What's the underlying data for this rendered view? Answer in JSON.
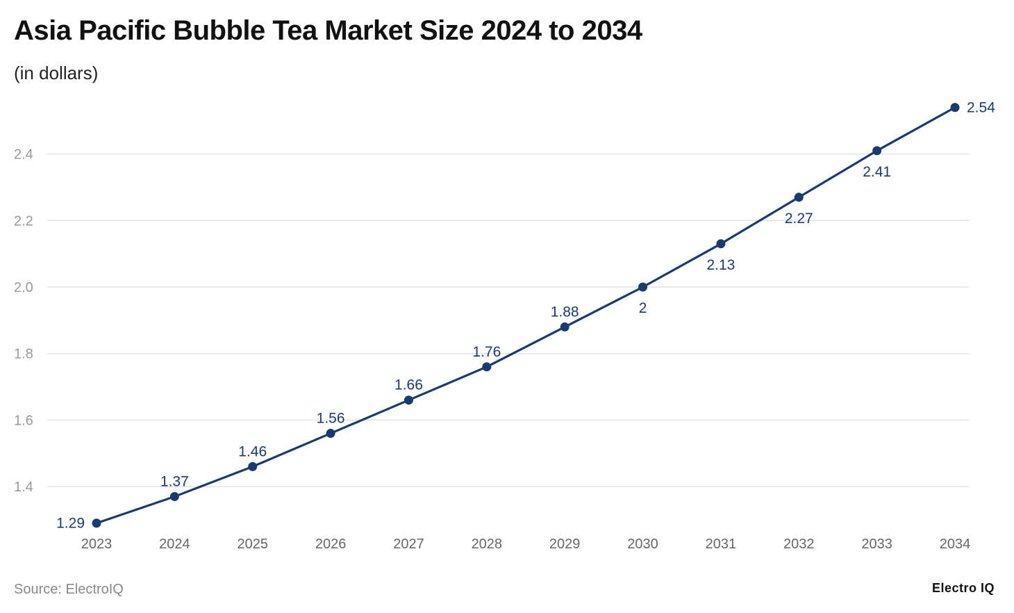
{
  "chart_data": {
    "type": "line",
    "title": "Asia Pacific Bubble Tea Market Size 2024 to 2034",
    "subtitle": "(in dollars)",
    "categories": [
      "2023",
      "2024",
      "2025",
      "2026",
      "2027",
      "2028",
      "2029",
      "2030",
      "2031",
      "2032",
      "2033",
      "2034"
    ],
    "values": [
      1.29,
      1.37,
      1.46,
      1.56,
      1.66,
      1.76,
      1.88,
      2,
      2.13,
      2.27,
      2.41,
      2.54
    ],
    "data_labels": [
      "1.29",
      "1.37",
      "1.46",
      "1.56",
      "1.66",
      "1.76",
      "1.88",
      "2",
      "2.13",
      "2.27",
      "2.41",
      "2.54"
    ],
    "yticks": [
      "1.4",
      "1.6",
      "1.8",
      "2.0",
      "2.2",
      "2.4"
    ],
    "ylim": [
      1.29,
      2.54
    ],
    "grid": true,
    "line_color": "#1b3a6e",
    "grid_color": "#e3e3e3"
  },
  "source": "Source: ElectroIQ",
  "logo": "Electro IQ"
}
